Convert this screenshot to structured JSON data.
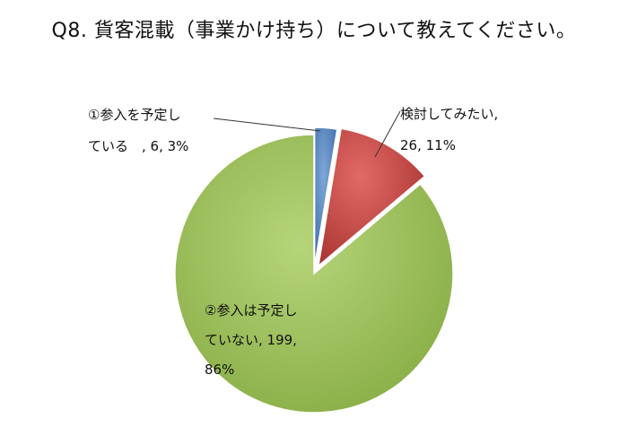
{
  "title": "Q8. 貨客混載（事業かけ持ち）について教えてください。",
  "chart_data": {
    "type": "pie",
    "slices": [
      {
        "name": "①参入を予定している",
        "value": 6,
        "percent": "3%",
        "color": "#4f81bd",
        "label_lines": [
          "①参入を予定し",
          "ている　, 6, 3%"
        ]
      },
      {
        "name": "検討してみたい",
        "value": 26,
        "percent": "11%",
        "color": "#c0504d",
        "label_lines": [
          "検討してみたい,",
          "26, 11%"
        ]
      },
      {
        "name": "②参入は予定していない",
        "value": 199,
        "percent": "86%",
        "color": "#9bbb59",
        "label_lines": [
          "②参入は予定し",
          "ていない, 199,",
          "86%"
        ]
      }
    ]
  }
}
